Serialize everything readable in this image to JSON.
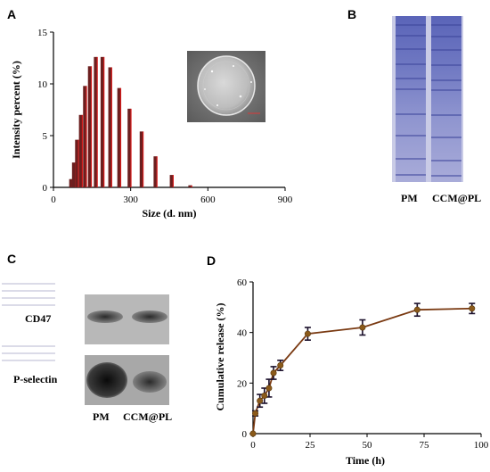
{
  "panels": {
    "a": {
      "letter": "A"
    },
    "b": {
      "letter": "B",
      "lane_labels": [
        "PM",
        "CCM@PL"
      ]
    },
    "c": {
      "letter": "C",
      "row_labels": [
        "CD47",
        "P-selectin"
      ],
      "lane_labels": [
        "PM",
        "CCM@PL"
      ]
    },
    "d": {
      "letter": "D"
    }
  },
  "chart_data": [
    {
      "type": "bar",
      "xlabel": "Size (d. nm)",
      "ylabel": "Intensity percent (%)",
      "xlim": [
        0,
        900
      ],
      "ylim": [
        0,
        15
      ],
      "x_ticks": [
        0,
        300,
        600,
        900
      ],
      "y_ticks": [
        0,
        5,
        10,
        15
      ],
      "series": [
        {
          "x": [
            68,
            79,
            91,
            106,
            122,
            141,
            164,
            190,
            220,
            255,
            295,
            342,
            396,
            459,
            531
          ],
          "values": [
            0.8,
            2.4,
            4.6,
            7.0,
            9.8,
            11.7,
            12.6,
            12.6,
            11.6,
            9.6,
            7.6,
            5.4,
            3.0,
            1.2,
            0.2
          ]
        }
      ],
      "colors": {
        "bar": "#6b1f1f",
        "bar_highlight": "#d61c1c"
      }
    },
    {
      "type": "line",
      "xlabel": "Time (h)",
      "ylabel": "Cumulative release (%)",
      "xlim": [
        0,
        100
      ],
      "ylim": [
        0,
        60
      ],
      "x_ticks": [
        0,
        25,
        50,
        75,
        100
      ],
      "y_ticks": [
        0,
        20,
        40,
        60
      ],
      "series": [
        {
          "x": [
            0,
            1,
            3,
            5,
            7,
            9,
            12,
            24,
            48,
            72,
            96
          ],
          "values": [
            0,
            8,
            13,
            15,
            18,
            24,
            27,
            39.5,
            42,
            49,
            49.5
          ],
          "errors": [
            0,
            1,
            2.5,
            3,
            3.5,
            2.5,
            2,
            2.5,
            3,
            2.5,
            2
          ]
        }
      ],
      "colors": {
        "line": "#7a3a12",
        "marker": "#8b5a1a",
        "error": "#1a0f2a"
      }
    }
  ]
}
